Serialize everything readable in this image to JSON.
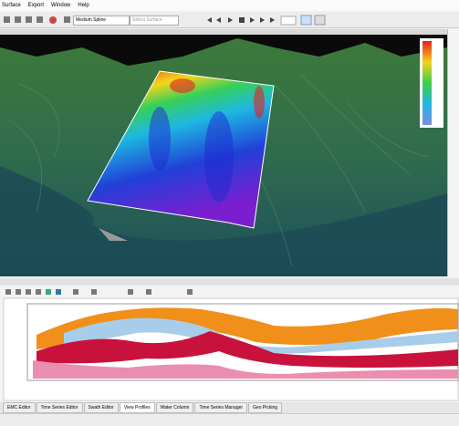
{
  "menu": [
    "Surface",
    "Export",
    "Window",
    "Help"
  ],
  "toolbar": {
    "interpolation": "Medium Spline",
    "surface": "Select Surface"
  },
  "tabs": [
    "EMC Editor",
    "Time Series Editor",
    "Swath Editor",
    "View Profiles",
    "Water Column",
    "Time Series Manager",
    "Geo Picking"
  ]
}
